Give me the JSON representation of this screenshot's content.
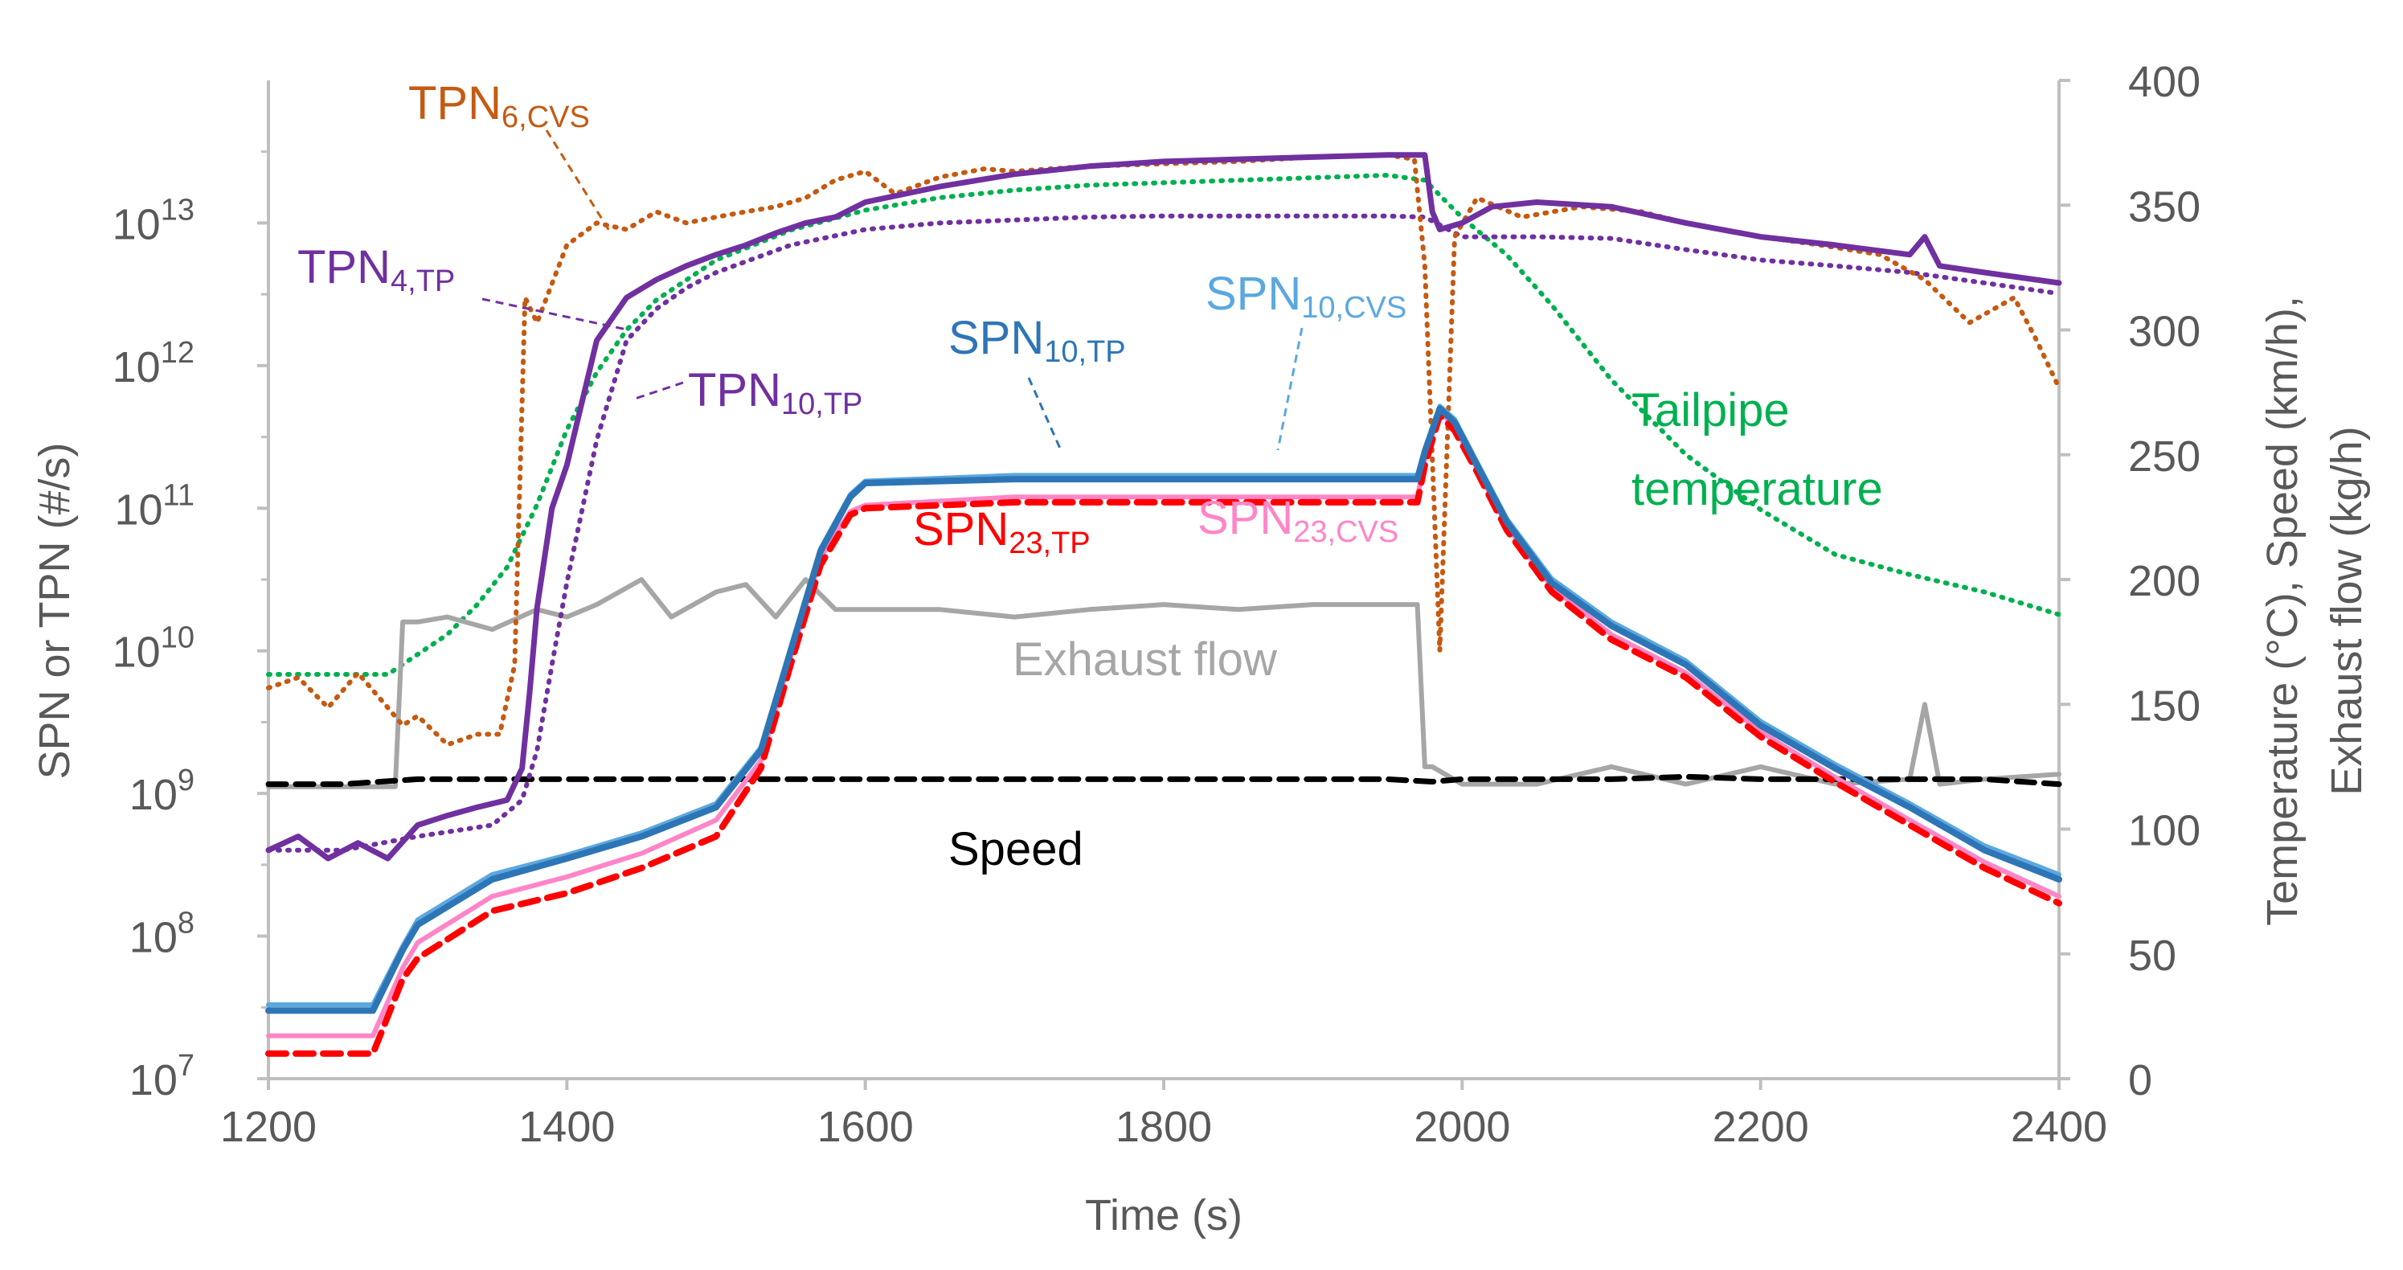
{
  "chart_data": {
    "type": "line",
    "title": "",
    "xlabel": "Time (s)",
    "ylabel_left": "SPN or TPN (#/s)",
    "ylabel_right": [
      "Temperature (°C), Speed (km/h),",
      "Exhaust flow (kg/h)"
    ],
    "xlim": [
      1200,
      2400
    ],
    "x_ticks": [
      "1200",
      "1400",
      "1600",
      "1800",
      "2000",
      "2200",
      "2400"
    ],
    "y_left_scale": "log",
    "y_left_lim": [
      10000000.0,
      100000000000000.0
    ],
    "y_left_ticks": [
      {
        "base": "10",
        "exp": "7"
      },
      {
        "base": "10",
        "exp": "8"
      },
      {
        "base": "10",
        "exp": "9"
      },
      {
        "base": "10",
        "exp": "10"
      },
      {
        "base": "10",
        "exp": "11"
      },
      {
        "base": "10",
        "exp": "12"
      },
      {
        "base": "10",
        "exp": "13"
      }
    ],
    "y_right_lim": [
      0,
      400
    ],
    "y_right_ticks": [
      "0",
      "50",
      "100",
      "150",
      "200",
      "250",
      "300",
      "350",
      "400"
    ],
    "colors": {
      "tpn6_cvs": "#c55a11",
      "tpn4_tp": "#7030a0",
      "tpn10_tp": "#7030a0",
      "spn10_tp": "#2e75b6",
      "spn10_cvs": "#5ba8e0",
      "spn23_tp": "#ff0000",
      "spn23_cvs": "#ff85c8",
      "tailpipe_temperature": "#00b050",
      "exhaust_flow": "#a6a6a6",
      "speed": "#000000",
      "axis": "#bfbfbf",
      "text": "#595959"
    },
    "series": [
      {
        "name": "TPN6,CVS",
        "axis": "left",
        "style": "dotted",
        "x": [
          1200,
          1220,
          1240,
          1260,
          1280,
          1290,
          1300,
          1320,
          1340,
          1355,
          1365,
          1372,
          1380,
          1400,
          1420,
          1440,
          1460,
          1480,
          1500,
          1520,
          1540,
          1560,
          1580,
          1600,
          1620,
          1650,
          1680,
          1700,
          1750,
          1800,
          1850,
          1900,
          1950,
          1968,
          1975,
          1985,
          1995,
          2010,
          2040,
          2080,
          2120,
          2150,
          2200,
          2240,
          2280,
          2310,
          2340,
          2370,
          2385,
          2400
        ],
        "y": [
          5500000000.0,
          6500000000.0,
          4000000000.0,
          7000000000.0,
          4000000000.0,
          3000000000.0,
          3500000000.0,
          2200000000.0,
          2600000000.0,
          2600000000.0,
          8000000000.0,
          3000000000000.0,
          2000000000000.0,
          7000000000000.0,
          10000000000000.0,
          9000000000000.0,
          12000000000000.0,
          10000000000000.0,
          11000000000000.0,
          12000000000000.0,
          13000000000000.0,
          15000000000000.0,
          20000000000000.0,
          23000000000000.0,
          16000000000000.0,
          21000000000000.0,
          24000000000000.0,
          23000000000000.0,
          25000000000000.0,
          26000000000000.0,
          27000000000000.0,
          29000000000000.0,
          30000000000000.0,
          28000000000000.0,
          5000000000000.0,
          10000000000.0,
          8000000000000.0,
          15000000000000.0,
          11000000000000.0,
          13000000000000.0,
          12000000000000.0,
          10000000000000.0,
          8000000000000.0,
          7000000000000.0,
          6000000000000.0,
          4000000000000.0,
          2000000000000.0,
          3000000000000.0,
          1500000000000.0,
          700000000000.0
        ]
      },
      {
        "name": "TPN4,TP",
        "axis": "left",
        "style": "solid",
        "x": [
          1200,
          1220,
          1240,
          1260,
          1280,
          1300,
          1320,
          1340,
          1360,
          1370,
          1375,
          1380,
          1390,
          1400,
          1420,
          1440,
          1460,
          1480,
          1500,
          1520,
          1540,
          1560,
          1580,
          1600,
          1650,
          1700,
          1750,
          1800,
          1850,
          1900,
          1950,
          1975,
          1980,
          1985,
          2000,
          2020,
          2050,
          2100,
          2150,
          2200,
          2250,
          2300,
          2310,
          2320,
          2350,
          2400
        ],
        "y": [
          400000000.0,
          500000000.0,
          350000000.0,
          450000000.0,
          350000000.0,
          600000000.0,
          700000000.0,
          800000000.0,
          900000000.0,
          1500000000.0,
          5000000000.0,
          20000000000.0,
          100000000000.0,
          200000000000.0,
          1500000000000.0,
          3000000000000.0,
          4000000000000.0,
          5000000000000.0,
          6000000000000.0,
          7000000000000.0,
          8500000000000.0,
          10000000000000.0,
          11000000000000.0,
          14000000000000.0,
          18000000000000.0,
          22000000000000.0,
          25000000000000.0,
          27000000000000.0,
          28000000000000.0,
          29000000000000.0,
          30000000000000.0,
          30000000000000.0,
          12000000000000.0,
          9000000000000.0,
          10000000000000.0,
          13000000000000.0,
          14000000000000.0,
          13000000000000.0,
          10000000000000.0,
          8000000000000.0,
          7000000000000.0,
          6000000000000.0,
          8000000000000.0,
          5000000000000.0,
          4500000000000.0,
          3800000000000.0
        ]
      },
      {
        "name": "TPN10,TP",
        "axis": "left",
        "style": "dotted",
        "x": [
          1200,
          1250,
          1300,
          1350,
          1370,
          1380,
          1390,
          1400,
          1420,
          1440,
          1460,
          1480,
          1500,
          1550,
          1600,
          1650,
          1700,
          1750,
          1800,
          1850,
          1900,
          1950,
          1975,
          2000,
          2050,
          2100,
          2150,
          2200,
          2250,
          2300,
          2350,
          2400
        ],
        "y": [
          400000000.0,
          400000000.0,
          500000000.0,
          600000000.0,
          900000000.0,
          2000000000.0,
          8000000000.0,
          30000000000.0,
          300000000000.0,
          1500000000000.0,
          2500000000000.0,
          3500000000000.0,
          4500000000000.0,
          7000000000000.0,
          9000000000000.0,
          10000000000000.0,
          10500000000000.0,
          11000000000000.0,
          11200000000000.0,
          11200000000000.0,
          11200000000000.0,
          11200000000000.0,
          11000000000000.0,
          8000000000000.0,
          8000000000000.0,
          7800000000000.0,
          6500000000000.0,
          5500000000000.0,
          5000000000000.0,
          4500000000000.0,
          3800000000000.0,
          3200000000000.0
        ]
      },
      {
        "name": "SPN10,TP",
        "axis": "left",
        "style": "solid",
        "x": [
          1200,
          1270,
          1290,
          1300,
          1350,
          1400,
          1450,
          1500,
          1530,
          1550,
          1570,
          1590,
          1600,
          1700,
          1800,
          1900,
          1970,
          1975,
          1985,
          1995,
          2010,
          2030,
          2060,
          2100,
          2150,
          2200,
          2250,
          2300,
          2350,
          2400
        ],
        "y": [
          30000000.0,
          30000000.0,
          80000000.0,
          120000000.0,
          250000000.0,
          350000000.0,
          500000000.0,
          800000000.0,
          2000000000.0,
          10000000000.0,
          50000000000.0,
          120000000000.0,
          150000000000.0,
          160000000000.0,
          160000000000.0,
          160000000000.0,
          160000000000.0,
          250000000000.0,
          500000000000.0,
          400000000000.0,
          200000000000.0,
          80000000000.0,
          30000000000.0,
          15000000000.0,
          8000000000.0,
          3000000000.0,
          1500000000.0,
          800000000.0,
          400000000.0,
          250000000.0
        ]
      },
      {
        "name": "SPN10,CVS",
        "axis": "left",
        "style": "solid",
        "x": [
          1200,
          1270,
          1290,
          1300,
          1350,
          1400,
          1450,
          1500,
          1530,
          1550,
          1570,
          1590,
          1600,
          1700,
          1800,
          1900,
          1970,
          1975,
          1985,
          1995,
          2010,
          2030,
          2060,
          2100,
          2150,
          2200,
          2250,
          2300,
          2350,
          2400
        ],
        "y": [
          33000000.0,
          33000000.0,
          85000000.0,
          130000000.0,
          270000000.0,
          370000000.0,
          530000000.0,
          850000000.0,
          2100000000.0,
          10500000000.0,
          52000000000.0,
          125000000000.0,
          155000000000.0,
          170000000000.0,
          170000000000.0,
          170000000000.0,
          170000000000.0,
          260000000000.0,
          520000000000.0,
          420000000000.0,
          210000000000.0,
          84000000000.0,
          32000000000.0,
          16000000000.0,
          8500000000.0,
          3200000000.0,
          1600000000.0,
          850000000.0,
          430000000.0,
          270000000.0
        ]
      },
      {
        "name": "SPN23,TP",
        "axis": "left",
        "style": "dashed",
        "x": [
          1200,
          1270,
          1290,
          1300,
          1350,
          1400,
          1450,
          1500,
          1530,
          1550,
          1570,
          1590,
          1600,
          1700,
          1800,
          1900,
          1970,
          1975,
          1985,
          1995,
          2010,
          2030,
          2060,
          2100,
          2150,
          2200,
          2250,
          2300,
          2350,
          2400
        ],
        "y": [
          15000000.0,
          15000000.0,
          50000000.0,
          70000000.0,
          150000000.0,
          200000000.0,
          300000000.0,
          500000000.0,
          1500000000.0,
          8000000000.0,
          40000000000.0,
          90000000000.0,
          100000000000.0,
          110000000000.0,
          110000000000.0,
          110000000000.0,
          110000000000.0,
          200000000000.0,
          450000000000.0,
          350000000000.0,
          180000000000.0,
          70000000000.0,
          26000000000.0,
          12000000000.0,
          6500000000.0,
          2500000000.0,
          1200000000.0,
          600000000.0,
          300000000.0,
          170000000.0
        ]
      },
      {
        "name": "SPN23,CVS",
        "axis": "left",
        "style": "solid",
        "x": [
          1200,
          1270,
          1290,
          1300,
          1350,
          1400,
          1450,
          1500,
          1530,
          1550,
          1570,
          1590,
          1600,
          1700,
          1800,
          1900,
          1970,
          1975,
          1985,
          1995,
          2010,
          2030,
          2060,
          2100,
          2150,
          2200,
          2250,
          2300,
          2350,
          2400
        ],
        "y": [
          20000000.0,
          20000000.0,
          60000000.0,
          90000000.0,
          190000000.0,
          260000000.0,
          380000000.0,
          650000000.0,
          1700000000.0,
          9000000000.0,
          45000000000.0,
          95000000000.0,
          105000000000.0,
          120000000000.0,
          120000000000.0,
          120000000000.0,
          120000000000.0,
          220000000000.0,
          480000000000.0,
          370000000000.0,
          190000000000.0,
          75000000000.0,
          28000000000.0,
          13000000000.0,
          7000000000.0,
          2700000000.0,
          1300000000.0,
          650000000.0,
          330000000.0,
          190000000.0
        ]
      },
      {
        "name": "Tailpipe temperature",
        "axis": "right",
        "style": "dotted",
        "x": [
          1200,
          1250,
          1280,
          1300,
          1320,
          1340,
          1360,
          1380,
          1400,
          1420,
          1440,
          1460,
          1480,
          1500,
          1550,
          1600,
          1650,
          1700,
          1750,
          1800,
          1850,
          1900,
          1950,
          1975,
          2000,
          2030,
          2060,
          2100,
          2150,
          2200,
          2250,
          2300,
          2350,
          2400
        ],
        "y": [
          162,
          162,
          162,
          170,
          178,
          190,
          205,
          230,
          260,
          283,
          300,
          312,
          320,
          328,
          340,
          348,
          353,
          356,
          358,
          359,
          360,
          361,
          362,
          360,
          345,
          330,
          310,
          280,
          250,
          228,
          210,
          202,
          195,
          186
        ]
      },
      {
        "name": "Exhaust flow",
        "axis": "right",
        "style": "solid",
        "x": [
          1200,
          1260,
          1285,
          1290,
          1300,
          1320,
          1350,
          1380,
          1400,
          1420,
          1450,
          1470,
          1500,
          1520,
          1540,
          1560,
          1580,
          1600,
          1650,
          1700,
          1750,
          1800,
          1850,
          1900,
          1950,
          1970,
          1975,
          1980,
          2000,
          2050,
          2100,
          2150,
          2200,
          2250,
          2300,
          2310,
          2320,
          2350,
          2400
        ],
        "y": [
          117,
          117,
          117,
          183,
          183,
          185,
          180,
          188,
          185,
          190,
          200,
          185,
          195,
          198,
          185,
          200,
          188,
          188,
          188,
          185,
          188,
          190,
          188,
          190,
          190,
          190,
          125,
          125,
          118,
          118,
          125,
          118,
          125,
          118,
          120,
          150,
          118,
          120,
          122
        ]
      },
      {
        "name": "Speed",
        "axis": "right",
        "style": "dashed",
        "x": [
          1200,
          1250,
          1300,
          1350,
          1400,
          1500,
          1600,
          1700,
          1800,
          1900,
          1950,
          1980,
          2000,
          2050,
          2100,
          2150,
          2200,
          2250,
          2300,
          2350,
          2400
        ],
        "y": [
          118,
          118,
          120,
          120,
          120,
          120,
          120,
          120,
          120,
          120,
          120,
          119,
          120,
          120,
          120,
          121,
          120,
          120,
          120,
          120,
          118
        ]
      }
    ],
    "labels": {
      "tpn6": {
        "main": "TPN",
        "sub": "6,CVS"
      },
      "tpn4": {
        "main": "TPN",
        "sub": "4,TP"
      },
      "tpn10": {
        "main": "TPN",
        "sub": "10,TP"
      },
      "spn10tp": {
        "main": "SPN",
        "sub": "10,TP"
      },
      "spn10cvs": {
        "main": "SPN",
        "sub": "10,CVS"
      },
      "spn23tp": {
        "main": "SPN",
        "sub": "23,TP"
      },
      "spn23cvs": {
        "main": "SPN",
        "sub": "23,CVS"
      },
      "tailpipe": [
        "Tailpipe",
        "temperature"
      ],
      "exhaust": "Exhaust flow",
      "speed": "Speed"
    }
  }
}
